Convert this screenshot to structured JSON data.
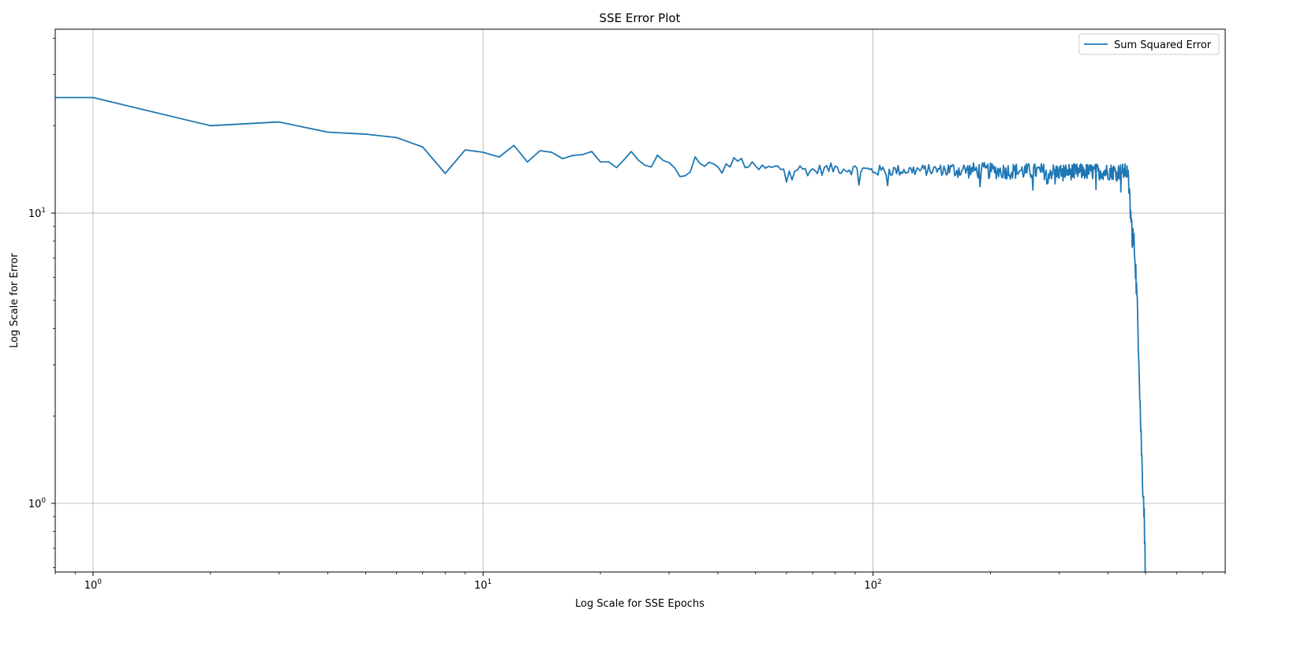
{
  "chart_data": {
    "type": "line",
    "title": "SSE Error Plot",
    "xlabel": "Log Scale for SSE Epochs",
    "ylabel": "Log Scale for Error",
    "xscale": "log",
    "yscale": "log",
    "xlim": [
      0.8,
      800
    ],
    "ylim": [
      0.58,
      43
    ],
    "grid": true,
    "legend": {
      "location": "top-right",
      "entries": [
        "Sum Squared Error"
      ]
    },
    "x_major_ticks": [
      {
        "value": 1,
        "base": "10",
        "exp": "0"
      },
      {
        "value": 10,
        "base": "10",
        "exp": "1"
      },
      {
        "value": 100,
        "base": "10",
        "exp": "2"
      }
    ],
    "y_major_ticks": [
      {
        "value": 1,
        "base": "10",
        "exp": "0"
      },
      {
        "value": 10,
        "base": "10",
        "exp": "1"
      }
    ],
    "series": [
      {
        "name": "Sum Squared Error",
        "color": "#1f77b4",
        "generation": "epochs 0..499; anchor values below, noisy plateau about 13.9-14.3 between epochs 10 and 450, then collapse to about 0.6 by epoch 499",
        "anchor_points": [
          [
            0,
            25
          ],
          [
            1,
            25
          ],
          [
            2,
            20
          ],
          [
            3,
            20.6
          ],
          [
            4,
            19.0
          ],
          [
            5,
            18.7
          ],
          [
            6,
            18.2
          ],
          [
            7,
            16.9
          ],
          [
            8,
            13.7
          ],
          [
            9,
            16.5
          ],
          [
            10,
            16.2
          ],
          [
            11,
            15.6
          ],
          [
            12,
            17.1
          ],
          [
            13,
            15.0
          ],
          [
            14,
            16.4
          ],
          [
            15,
            16.2
          ],
          [
            16,
            15.4
          ],
          [
            17,
            15.8
          ],
          [
            18,
            15.9
          ],
          [
            19,
            16.3
          ],
          [
            20,
            15.0
          ],
          [
            22,
            14.6
          ],
          [
            24,
            15.6
          ],
          [
            26,
            14.4
          ],
          [
            28,
            15.3
          ],
          [
            30,
            14.5
          ],
          [
            33,
            13.1
          ],
          [
            35,
            15.5
          ],
          [
            40,
            14.0
          ],
          [
            45,
            15.2
          ],
          [
            50,
            14.2
          ],
          [
            60,
            14.3
          ],
          [
            70,
            14.0
          ],
          [
            80,
            14.3
          ],
          [
            100,
            14.0
          ],
          [
            150,
            14.1
          ],
          [
            200,
            14.0
          ],
          [
            300,
            13.9
          ],
          [
            400,
            13.9
          ],
          [
            450,
            13.9
          ],
          [
            460,
            9.0
          ],
          [
            470,
            7.2
          ],
          [
            480,
            3.5
          ],
          [
            485,
            2.0
          ],
          [
            490,
            1.3
          ],
          [
            495,
            1.0
          ],
          [
            499,
            0.6
          ]
        ]
      }
    ]
  }
}
